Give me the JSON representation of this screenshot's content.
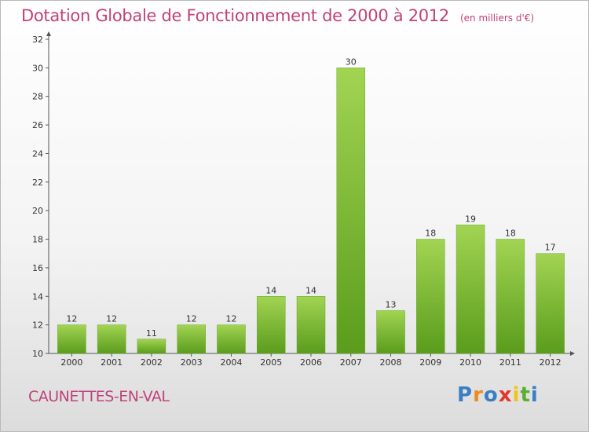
{
  "header": {
    "title": "Dotation Globale de Fonctionnement de 2000 à 2012",
    "unit": "(en milliers d'€)"
  },
  "footer": {
    "commune": "CAUNETTES-EN-VAL",
    "logo_letters": [
      "P",
      "r",
      "o",
      "x",
      "i",
      "t",
      "i"
    ],
    "logo_colors": [
      "#3a7fc4",
      "#f08a1c",
      "#3a7fc4",
      "#e3362b",
      "#f3c21d",
      "#59b030",
      "#3a7fc4"
    ]
  },
  "colors": {
    "title": "#c0427a",
    "bar_light": "#a2d452",
    "bar_dark": "#5a9c1c"
  },
  "chart_data": {
    "type": "bar",
    "categories": [
      "2000",
      "2001",
      "2002",
      "2003",
      "2004",
      "2005",
      "2006",
      "2007",
      "2008",
      "2009",
      "2010",
      "2011",
      "2012"
    ],
    "values": [
      12,
      12,
      11,
      12,
      12,
      14,
      14,
      30,
      13,
      18,
      19,
      18,
      17
    ],
    "ylim": [
      10,
      32
    ],
    "yticks": [
      10,
      12,
      14,
      16,
      18,
      20,
      22,
      24,
      26,
      28,
      30,
      32
    ],
    "grid": false,
    "legend": "none"
  }
}
